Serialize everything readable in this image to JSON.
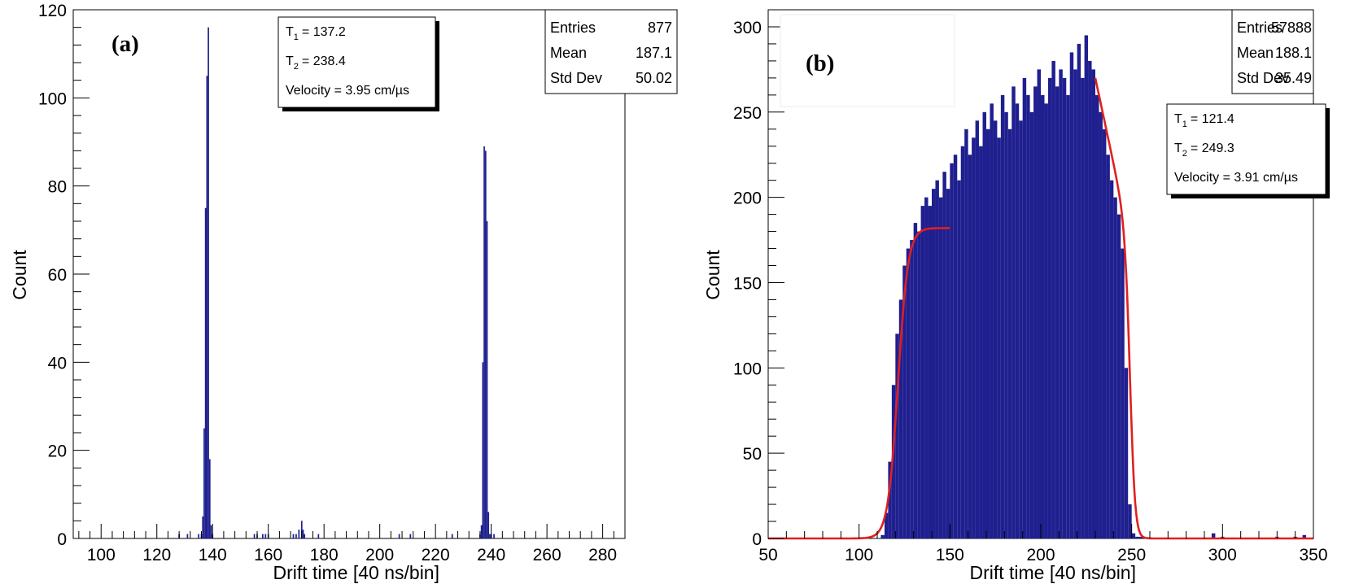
{
  "chart_data": [
    {
      "type": "histogram",
      "panel_label": "(a)",
      "xlabel": "Drift time [40 ns/bin]",
      "ylabel": "Count",
      "xlim": [
        90,
        288
      ],
      "ylim": [
        0,
        120
      ],
      "x_ticks": [
        100,
        120,
        140,
        160,
        180,
        200,
        220,
        240,
        260,
        280
      ],
      "y_ticks": [
        0,
        20,
        40,
        60,
        80,
        100,
        120
      ],
      "stats": [
        {
          "label": "Entries",
          "value": "877"
        },
        {
          "label": "Mean",
          "value": "187.1"
        },
        {
          "label": "Std Dev",
          "value": "50.02"
        }
      ],
      "fit": {
        "t1_sym": "T",
        "t1_sub": "1",
        "t1_value": "= 137.2",
        "t2_sym": "T",
        "t2_sub": "2",
        "t2_value": "= 238.4",
        "velocity": "Velocity = 3.95 cm/µs"
      },
      "series": [
        {
          "color": "#1f1f8f",
          "bins": [
            [
              128,
              1
            ],
            [
              131,
              1
            ],
            [
              135,
              1
            ],
            [
              136,
              1
            ],
            [
              136.5,
              5
            ],
            [
              137,
              25
            ],
            [
              137.5,
              75
            ],
            [
              138,
              105
            ],
            [
              138.5,
              116
            ],
            [
              139,
              18
            ],
            [
              139.5,
              3
            ],
            [
              140,
              1
            ],
            [
              155,
              1
            ],
            [
              156,
              1
            ],
            [
              158,
              1
            ],
            [
              159,
              1
            ],
            [
              160,
              1
            ],
            [
              169,
              1
            ],
            [
              170,
              1
            ],
            [
              171,
              2
            ],
            [
              172,
              4
            ],
            [
              172.5,
              2
            ],
            [
              173,
              1
            ],
            [
              178,
              1
            ],
            [
              207,
              1
            ],
            [
              211,
              1
            ],
            [
              226,
              1
            ],
            [
              236,
              1
            ],
            [
              236.5,
              3
            ],
            [
              237,
              40
            ],
            [
              237.5,
              89
            ],
            [
              238,
              88
            ],
            [
              238.5,
              72
            ],
            [
              239,
              6
            ],
            [
              239.5,
              1
            ],
            [
              240,
              1
            ],
            [
              241,
              1
            ]
          ]
        }
      ]
    },
    {
      "type": "histogram",
      "panel_label": "(b)",
      "xlabel": "Drift time [40 ns/bin]",
      "ylabel": "Count",
      "xlim": [
        50,
        350
      ],
      "ylim": [
        0,
        310
      ],
      "x_ticks": [
        50,
        100,
        150,
        200,
        250,
        300,
        350
      ],
      "y_ticks": [
        0,
        50,
        100,
        150,
        200,
        250,
        300
      ],
      "stats": [
        {
          "label": "Entries",
          "value": "57888"
        },
        {
          "label": "Mean",
          "value": "188.1"
        },
        {
          "label": "Std Dev",
          "value": "35.49"
        }
      ],
      "fit": {
        "t1_sym": "T",
        "t1_sub": "1",
        "t1_value": "= 121.4",
        "t2_sym": "T",
        "t2_sub": "2",
        "t2_value": "= 249.3",
        "velocity": "Velocity = 3.91 cm/µs"
      },
      "series": [
        {
          "color": "#1f1f8f",
          "x": [
            113,
            115,
            117,
            119,
            121,
            123,
            125,
            127,
            129,
            131,
            133,
            135,
            137,
            139,
            141,
            143,
            145,
            147,
            149,
            151,
            153,
            155,
            157,
            159,
            161,
            163,
            165,
            167,
            169,
            171,
            173,
            175,
            177,
            179,
            181,
            183,
            185,
            187,
            189,
            191,
            193,
            195,
            197,
            199,
            201,
            203,
            205,
            207,
            209,
            211,
            213,
            215,
            217,
            219,
            221,
            223,
            225,
            227,
            229,
            231,
            233,
            235,
            237,
            239,
            241,
            243,
            245,
            247,
            249,
            251,
            253,
            255,
            257,
            260,
            265,
            270,
            280,
            290,
            295,
            300,
            320,
            330,
            340,
            345
          ],
          "y": [
            2,
            15,
            45,
            90,
            120,
            140,
            160,
            170,
            175,
            185,
            180,
            195,
            200,
            195,
            205,
            210,
            200,
            215,
            205,
            220,
            225,
            210,
            230,
            240,
            225,
            235,
            245,
            230,
            250,
            240,
            255,
            245,
            235,
            260,
            250,
            240,
            265,
            255,
            245,
            270,
            260,
            250,
            265,
            275,
            260,
            255,
            270,
            280,
            265,
            275,
            270,
            260,
            285,
            275,
            290,
            270,
            295,
            280,
            275,
            260,
            250,
            240,
            225,
            210,
            200,
            190,
            170,
            100,
            20,
            3,
            1,
            1,
            0,
            0,
            0,
            0,
            0,
            0,
            3,
            1,
            0,
            1,
            1,
            2
          ]
        },
        {
          "color": "#e02020",
          "fit_type": "fermi",
          "rise_t": 121.4,
          "rise_plateau": 182,
          "rise_width": 2.8,
          "rise_range": [
            50,
            150
          ],
          "fall_t": 249.3,
          "fall_peak": 270,
          "fall_range": [
            230,
            350
          ]
        }
      ]
    }
  ]
}
